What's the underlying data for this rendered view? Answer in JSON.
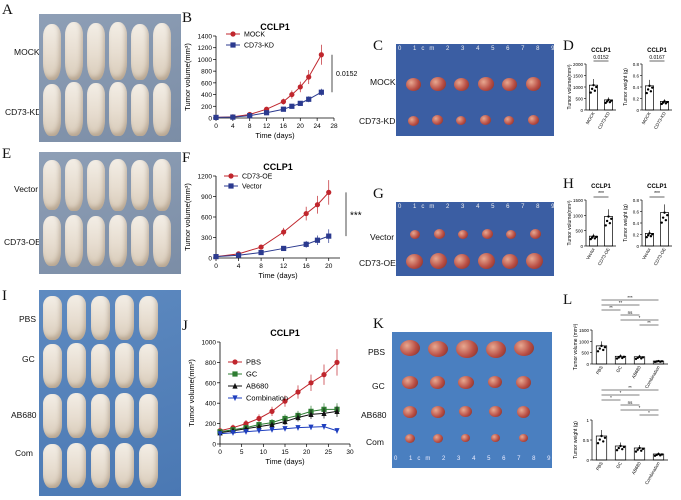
{
  "panels": {
    "A": {
      "label": "A",
      "rows": [
        "MOCK",
        "CD73-KD"
      ]
    },
    "B": {
      "label": "B",
      "title": "CCLP1",
      "ylabel": "Tumor volume(mm³)",
      "xlabel": "Time (days)",
      "pvalue": "0.0152"
    },
    "C": {
      "label": "C",
      "rows": [
        "MOCK",
        "CD73-KD"
      ]
    },
    "D": {
      "label": "D",
      "title1": "CCLP1",
      "title2": "CCLP1",
      "ylabel1": "Tumor volume(mm³)",
      "ylabel2": "Tumor weight (g)",
      "p1": "0.0152",
      "p2": "0.0167"
    },
    "E": {
      "label": "E",
      "rows": [
        "Vector",
        "CD73-OE"
      ]
    },
    "F": {
      "label": "F",
      "title": "CCLP1",
      "ylabel": "Tumor volume(mm³)",
      "xlabel": "Time (days)",
      "sig": "***"
    },
    "G": {
      "label": "G",
      "rows": [
        "Vector",
        "CD73-OE"
      ]
    },
    "H": {
      "label": "H",
      "title1": "CCLP1",
      "title2": "CCLP1",
      "ylabel1": "Tumor volume(mm³)",
      "ylabel2": "Tumor weight (g)",
      "sig1": "***",
      "sig2": "***"
    },
    "I": {
      "label": "I",
      "rows": [
        "PBS",
        "GC",
        "AB680",
        "Com"
      ]
    },
    "J": {
      "label": "J",
      "title": "CCLP1",
      "ylabel": "Tumor volume(mm³)",
      "xlabel": "Time (days)"
    },
    "K": {
      "label": "K",
      "rows": [
        "PBS",
        "GC",
        "AB680",
        "Com"
      ]
    },
    "L": {
      "label": "L",
      "ylabel1": "Tumor volume (mm³)",
      "ylabel2": "Tumor weight (g)",
      "sig_top": [
        "***",
        "**",
        "**",
        "ns",
        "*",
        "**"
      ],
      "sig_bottom": [
        "**",
        "*",
        "*",
        "ns",
        "*",
        "*"
      ]
    }
  },
  "ruler_marks": [
    "0",
    "1cm",
    "2",
    "3",
    "4",
    "5",
    "6",
    "7",
    "8",
    "9",
    "10",
    "11"
  ],
  "chart_data": [
    {
      "id": "B",
      "type": "line",
      "title": "CCLP1",
      "xlabel": "Time (days)",
      "ylabel": "Tumor volume(mm³)",
      "xlim": [
        0,
        28
      ],
      "ylim": [
        0,
        1400
      ],
      "xticks": [
        0,
        4,
        8,
        12,
        16,
        20,
        24,
        28
      ],
      "yticks": [
        0,
        200,
        400,
        600,
        800,
        1000,
        1200,
        1400
      ],
      "x": [
        0,
        4,
        8,
        12,
        16,
        18,
        20,
        22,
        25
      ],
      "series": [
        {
          "name": "MOCK",
          "color": "#c0262d",
          "marker": "circle",
          "values": [
            10,
            20,
            60,
            150,
            280,
            400,
            530,
            700,
            1080
          ],
          "err": [
            5,
            8,
            15,
            30,
            50,
            70,
            90,
            120,
            170
          ]
        },
        {
          "name": "CD73-KD",
          "color": "#2b3a8f",
          "marker": "square",
          "values": [
            10,
            15,
            40,
            90,
            150,
            200,
            250,
            320,
            440
          ],
          "err": [
            5,
            6,
            10,
            20,
            30,
            35,
            40,
            50,
            60
          ]
        }
      ],
      "annotation": "0.0152"
    },
    {
      "id": "F",
      "type": "line",
      "title": "CCLP1",
      "xlabel": "Time (days)",
      "ylabel": "Tumor volume(mm³)",
      "xlim": [
        0,
        22
      ],
      "ylim": [
        0,
        1200
      ],
      "xticks": [
        0,
        4,
        8,
        12,
        16,
        20
      ],
      "yticks": [
        0,
        300,
        600,
        900,
        1200
      ],
      "x": [
        0,
        4,
        8,
        12,
        16,
        18,
        20
      ],
      "series": [
        {
          "name": "CD73-OE",
          "color": "#c0262d",
          "marker": "circle",
          "values": [
            20,
            60,
            160,
            380,
            650,
            780,
            960
          ],
          "err": [
            5,
            15,
            30,
            60,
            100,
            130,
            180
          ]
        },
        {
          "name": "Vector",
          "color": "#2b3a8f",
          "marker": "square",
          "values": [
            20,
            40,
            80,
            140,
            200,
            260,
            320
          ],
          "err": [
            5,
            10,
            20,
            30,
            50,
            70,
            100
          ]
        }
      ],
      "annotation": "***"
    },
    {
      "id": "J",
      "type": "line",
      "title": "CCLP1",
      "xlabel": "Time (days)",
      "ylabel": "Tumor volume(mm³)",
      "xlim": [
        0,
        30
      ],
      "ylim": [
        0,
        1000
      ],
      "xticks": [
        0,
        5,
        10,
        15,
        20,
        25,
        30
      ],
      "yticks": [
        0,
        200,
        400,
        600,
        800,
        1000
      ],
      "x": [
        0,
        3,
        6,
        9,
        12,
        15,
        18,
        21,
        24,
        27
      ],
      "series": [
        {
          "name": "PBS",
          "color": "#c0262d",
          "marker": "circle",
          "values": [
            130,
            160,
            200,
            250,
            320,
            420,
            510,
            600,
            680,
            800
          ],
          "err": [
            30,
            30,
            35,
            40,
            45,
            55,
            65,
            80,
            100,
            130
          ]
        },
        {
          "name": "GC",
          "color": "#2e7d32",
          "marker": "square",
          "values": [
            120,
            140,
            160,
            190,
            210,
            250,
            280,
            320,
            340,
            340
          ],
          "err": [
            25,
            25,
            30,
            30,
            35,
            40,
            45,
            55,
            60,
            60
          ]
        },
        {
          "name": "AB680",
          "color": "#111111",
          "marker": "triangle",
          "values": [
            110,
            130,
            150,
            170,
            190,
            220,
            260,
            290,
            300,
            320
          ],
          "err": [
            25,
            25,
            25,
            30,
            30,
            35,
            40,
            45,
            50,
            55
          ]
        },
        {
          "name": "Combination",
          "color": "#1f3fbf",
          "marker": "triangle-down",
          "values": [
            100,
            110,
            120,
            130,
            140,
            150,
            160,
            165,
            170,
            130
          ],
          "err": [
            20,
            20,
            20,
            20,
            20,
            20,
            25,
            25,
            25,
            25
          ]
        }
      ]
    },
    {
      "id": "D1",
      "type": "bar",
      "title": "CCLP1",
      "ylabel": "Tumor volume(mm³)",
      "categories": [
        "MOCK",
        "CD73-KD"
      ],
      "values": [
        1080,
        440
      ],
      "ylim": [
        0,
        2000
      ],
      "yticks": [
        0,
        500,
        1000,
        1500,
        2000
      ],
      "annotation": "0.0152"
    },
    {
      "id": "D2",
      "type": "bar",
      "title": "CCLP1",
      "ylabel": "Tumor weight (g)",
      "categories": [
        "MOCK",
        "CD73-KD"
      ],
      "values": [
        0.42,
        0.15
      ],
      "ylim": [
        0,
        0.8
      ],
      "yticks": [
        0.0,
        0.2,
        0.4,
        0.6,
        0.8
      ],
      "annotation": "0.0167"
    },
    {
      "id": "H1",
      "type": "bar",
      "title": "CCLP1",
      "ylabel": "Tumor volume(mm³)",
      "categories": [
        "Vector",
        "CD73-OE"
      ],
      "values": [
        320,
        960
      ],
      "ylim": [
        0,
        1500
      ],
      "yticks": [
        0,
        500,
        1000,
        1500
      ],
      "annotation": "***"
    },
    {
      "id": "H2",
      "type": "bar",
      "title": "CCLP1",
      "ylabel": "Tumor weight (g)",
      "categories": [
        "Vector",
        "CD73-OE"
      ],
      "values": [
        0.22,
        0.58
      ],
      "ylim": [
        0,
        0.8
      ],
      "yticks": [
        0.0,
        0.2,
        0.4,
        0.6,
        0.8
      ],
      "annotation": "***"
    },
    {
      "id": "L1",
      "type": "bar",
      "ylabel": "Tumor volume (mm³)",
      "categories": [
        "PBS",
        "GC",
        "AB680",
        "Combination"
      ],
      "values": [
        800,
        340,
        320,
        130
      ],
      "ylim": [
        0,
        1500
      ],
      "yticks": [
        0,
        500,
        1000,
        1500
      ]
    },
    {
      "id": "L2",
      "type": "bar",
      "ylabel": "Tumor weight (g)",
      "categories": [
        "PBS",
        "GC",
        "AB680",
        "Combination"
      ],
      "values": [
        0.6,
        0.35,
        0.3,
        0.15
      ],
      "ylim": [
        0,
        1.0
      ],
      "yticks": [
        0.0,
        0.5,
        1.0
      ]
    }
  ]
}
